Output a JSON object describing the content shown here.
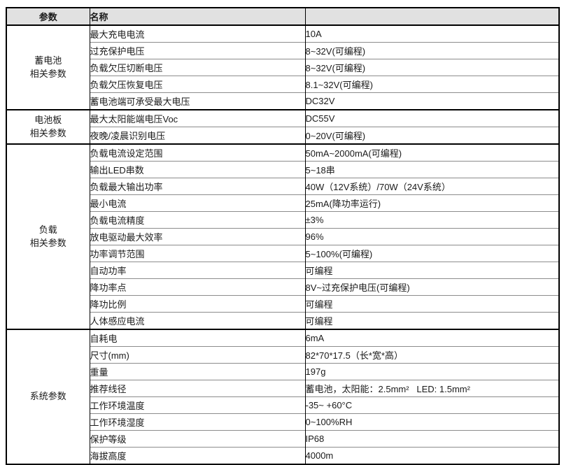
{
  "table": {
    "headers": {
      "param": "参数",
      "name": "名称",
      "value": ""
    },
    "colors": {
      "header_bg": "#e1e1e1",
      "border_dark": "#000000",
      "border_light": "#8c8c8c",
      "text": "#1a1a1a"
    },
    "sections": [
      {
        "category_lines": [
          "蓄电池",
          "相关参数"
        ],
        "rows": [
          {
            "name": "最大充电电流",
            "value": "10A"
          },
          {
            "name": "过充保护电压",
            "value": "8~32V(可编程)"
          },
          {
            "name": "负载欠压切断电压",
            "value": "8~32V(可编程)"
          },
          {
            "name": "负载欠压恢复电压",
            "value": "8.1~32V(可编程)"
          },
          {
            "name": "蓄电池端可承受最大电压",
            "value": "DC32V"
          }
        ]
      },
      {
        "category_lines": [
          "电池板",
          "相关参数"
        ],
        "rows": [
          {
            "name": "最大太阳能端电压Voc",
            "value": "DC55V"
          },
          {
            "name": "夜晚/凌晨识别电压",
            "value": "0~20V(可编程)"
          }
        ]
      },
      {
        "category_lines": [
          "负载",
          "相关参数"
        ],
        "rows": [
          {
            "name": "负载电流设定范围",
            "value": "50mA~2000mA(可编程)"
          },
          {
            "name": "输出LED串数",
            "value": "5~18串"
          },
          {
            "name": "负载最大输出功率",
            "value": "40W（12V系统）/70W（24V系统）"
          },
          {
            "name": "最小电流",
            "value": "25mA(降功率运行)"
          },
          {
            "name": "负载电流精度",
            "value": "±3%"
          },
          {
            "name": "放电驱动最大效率",
            "value": "96%"
          },
          {
            "name": "功率调节范围",
            "value": "5~100%(可编程)"
          },
          {
            "name": "自动功率",
            "value": "可编程"
          },
          {
            "name": "降功率点",
            "value": "8V~过充保护电压(可编程)"
          },
          {
            "name": "降功比例",
            "value": "可编程"
          },
          {
            "name": "人体感应电流",
            "value": "可编程"
          }
        ]
      },
      {
        "category_lines": [
          "系统参数"
        ],
        "rows": [
          {
            "name": "自耗电",
            "value": "6mA"
          },
          {
            "name": "尺寸(mm)",
            "value": "82*70*17.5（长*宽*高）"
          },
          {
            "name": "重量",
            "value": "197g"
          },
          {
            "name": "推荐线径",
            "value": "蓄电池，太阳能：2.5mm²   LED: 1.5mm²"
          },
          {
            "name": "工作环境温度",
            "value": "-35~ +60°C"
          },
          {
            "name": "工作环境湿度",
            "value": "0~100%RH"
          },
          {
            "name": "保护等级",
            "value": "IP68"
          },
          {
            "name": "海拔高度",
            "value": "4000m"
          }
        ]
      }
    ]
  }
}
